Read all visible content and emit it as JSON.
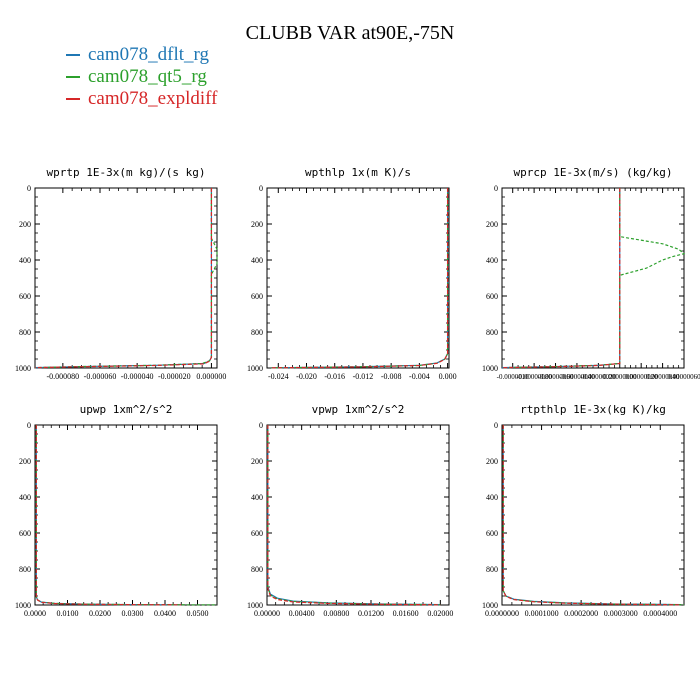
{
  "title": "CLUBB VAR at90E,-75N",
  "colors": {
    "dflt": "#1f77b4",
    "qt5": "#2ca02c",
    "expl": "#d62728"
  },
  "legend": [
    {
      "label": "cam078_dflt_rg",
      "color": "#1f77b4"
    },
    {
      "label": "cam078_qt5_rg",
      "color": "#2ca02c"
    },
    {
      "label": "cam078_expldiff",
      "color": "#d62728"
    }
  ],
  "chart_data": [
    {
      "type": "line",
      "title": "wprtp  1E-3x(m kg)/(s kg)",
      "xlim": [
        -9.5e-05,
        3e-06
      ],
      "ylim": [
        1000,
        0
      ],
      "y_inverted": true,
      "xticks": [
        -8e-05,
        -6e-05,
        -4e-05,
        -2e-05,
        0
      ],
      "xtick_labels": [
        "-0.000080",
        "-0.000060",
        "-0.000040",
        "-0.000020",
        "0.000000"
      ],
      "yticks": [
        0,
        200,
        400,
        600,
        800,
        1000
      ],
      "series": [
        {
          "name": "cam078_dflt_rg",
          "x": [
            0,
            0,
            -1e-06,
            -4e-06,
            -3e-05,
            -7e-05,
            -9.5e-05
          ],
          "y": [
            0,
            940,
            960,
            975,
            985,
            992,
            998
          ]
        },
        {
          "name": "cam078_qt5_rg",
          "x": [
            0,
            0,
            3e-06,
            3e-06,
            0,
            0,
            -1e-06,
            -5e-06,
            -3e-05,
            -7e-05,
            -9.5e-05
          ],
          "y": [
            0,
            280,
            340,
            420,
            480,
            940,
            960,
            975,
            985,
            992,
            998
          ]
        },
        {
          "name": "cam078_expldiff",
          "x": [
            0,
            0,
            -1e-06,
            -4e-06,
            -3e-05,
            -7e-05,
            -9.5e-05
          ],
          "y": [
            0,
            940,
            962,
            977,
            986,
            993,
            998
          ]
        }
      ]
    },
    {
      "type": "line",
      "title": "wpthlp  1x(m K)/s",
      "xlim": [
        -0.0256,
        0.0002
      ],
      "ylim": [
        1000,
        0
      ],
      "y_inverted": true,
      "xticks": [
        -0.024,
        -0.02,
        -0.016,
        -0.012,
        -0.008,
        -0.004,
        0
      ],
      "xtick_labels": [
        "-0.024",
        "-0.020",
        "-0.016",
        "-0.012",
        "-0.008",
        "-0.004",
        "0.000"
      ],
      "yticks": [
        0,
        200,
        400,
        600,
        800,
        1000
      ],
      "series": [
        {
          "name": "cam078_dflt_rg",
          "x": [
            0,
            0,
            -0.0004,
            -0.0015,
            -0.004,
            -0.012,
            -0.025
          ],
          "y": [
            0,
            920,
            950,
            972,
            985,
            993,
            999
          ]
        },
        {
          "name": "cam078_qt5_rg",
          "x": [
            0,
            0,
            -0.0004,
            -0.0015,
            -0.004,
            -0.012,
            -0.025
          ],
          "y": [
            0,
            920,
            951,
            973,
            986,
            993,
            999
          ]
        },
        {
          "name": "cam078_expldiff",
          "x": [
            0,
            0,
            -0.0004,
            -0.0015,
            -0.004,
            -0.012,
            -0.025
          ],
          "y": [
            0,
            920,
            952,
            974,
            986,
            994,
            999
          ]
        }
      ]
    },
    {
      "type": "line",
      "title": "wprcp  1E-3x(m/s) (kg/kg)",
      "xlim": [
        -1.1e-06,
        6e-07
      ],
      "ylim": [
        1000,
        0
      ],
      "y_inverted": true,
      "xticks": [
        -1e-06,
        -8e-07,
        -6e-07,
        -4e-07,
        -2e-07,
        0,
        2e-07,
        4e-07,
        6e-07
      ],
      "xtick_labels": [
        "-0.0000010",
        "-0.00000080",
        "-0.00000060",
        "-0.00000040",
        "-0.00000020",
        "0.00000000",
        "0.00000020",
        "0.00000040",
        "0.00000060"
      ],
      "yticks": [
        0,
        200,
        400,
        600,
        800,
        1000
      ],
      "series": [
        {
          "name": "cam078_dflt_rg",
          "x": [
            0,
            0,
            -2e-07,
            -6e-07,
            -1.1e-06
          ],
          "y": [
            0,
            975,
            985,
            992,
            998
          ]
        },
        {
          "name": "cam078_qt5_rg",
          "x": [
            0,
            0,
            1.5e-07,
            4e-07,
            5.5e-07,
            6e-07,
            5e-07,
            4e-07,
            2.5e-07,
            0,
            0,
            -2e-07,
            -6e-07,
            -1.1e-06
          ],
          "y": [
            0,
            270,
            285,
            310,
            340,
            365,
            380,
            400,
            445,
            485,
            975,
            985,
            992,
            998
          ]
        },
        {
          "name": "cam078_expldiff",
          "x": [
            0,
            0,
            -2e-07,
            -6e-07,
            -1.1e-06
          ],
          "y": [
            0,
            975,
            986,
            993,
            998
          ]
        }
      ]
    },
    {
      "type": "line",
      "title": "upwp  1xm^2/s^2",
      "xlim": [
        0,
        0.056
      ],
      "ylim": [
        1000,
        0
      ],
      "y_inverted": true,
      "xticks": [
        0,
        0.01,
        0.02,
        0.03,
        0.04,
        0.05
      ],
      "xtick_labels": [
        "0.0000",
        "0.0100",
        "0.0200",
        "0.0300",
        "0.0400",
        "0.0500"
      ],
      "yticks": [
        0,
        200,
        400,
        600,
        800,
        1000
      ],
      "series": [
        {
          "name": "cam078_dflt_rg",
          "x": [
            0.0004,
            0.0004,
            0.0008,
            0.002,
            0.006,
            0.015,
            0.03,
            0.045
          ],
          "y": [
            0,
            955,
            972,
            984,
            991,
            995,
            998,
            999
          ]
        },
        {
          "name": "cam078_qt5_rg",
          "x": [
            0.0004,
            0.0004,
            0.0008,
            0.002,
            0.006,
            0.015,
            0.03,
            0.05,
            0.056
          ],
          "y": [
            0,
            955,
            972,
            984,
            991,
            995,
            998,
            999,
            999
          ]
        },
        {
          "name": "cam078_expldiff",
          "x": [
            0.0004,
            0.0004,
            0.0008,
            0.002,
            0.006,
            0.015,
            0.03,
            0.045
          ],
          "y": [
            0,
            955,
            973,
            985,
            992,
            996,
            998,
            999
          ]
        }
      ]
    },
    {
      "type": "line",
      "title": "vpwp  1xm^2/s^2",
      "xlim": [
        0,
        0.021
      ],
      "ylim": [
        1000,
        0
      ],
      "y_inverted": true,
      "xticks": [
        0,
        0.004,
        0.008,
        0.012,
        0.016,
        0.02
      ],
      "xtick_labels": [
        "0.00000",
        "0.00400",
        "0.00800",
        "0.01200",
        "0.01600",
        "0.02000"
      ],
      "yticks": [
        0,
        200,
        400,
        600,
        800,
        1000
      ],
      "series": [
        {
          "name": "cam078_dflt_rg",
          "x": [
            0.0001,
            0.0001,
            0.0004,
            0.0012,
            0.003,
            0.007,
            0.013,
            0.02
          ],
          "y": [
            0,
            900,
            940,
            962,
            978,
            988,
            994,
            998
          ]
        },
        {
          "name": "cam078_qt5_rg",
          "x": [
            0.0001,
            0.0001,
            0.0004,
            0.0012,
            0.003,
            0.007,
            0.013,
            0.02
          ],
          "y": [
            0,
            905,
            945,
            966,
            980,
            989,
            995,
            998
          ]
        },
        {
          "name": "cam078_expldiff",
          "x": [
            0.0001,
            0.0001,
            0.0004,
            0.0012,
            0.003,
            0.007,
            0.013,
            0.02
          ],
          "y": [
            0,
            910,
            950,
            970,
            983,
            991,
            996,
            999
          ]
        }
      ]
    },
    {
      "type": "line",
      "title": "rtpthlp  1E-3x(kg K)/kg",
      "xlim": [
        0,
        0.00046
      ],
      "ylim": [
        1000,
        0
      ],
      "y_inverted": true,
      "xticks": [
        0,
        0.0001,
        0.0002,
        0.0003,
        0.0004
      ],
      "xtick_labels": [
        "0.0000000",
        "0.0001000",
        "0.0002000",
        "0.0003000",
        "0.0004000"
      ],
      "yticks": [
        0,
        200,
        400,
        600,
        800,
        1000
      ],
      "series": [
        {
          "name": "cam078_dflt_rg",
          "x": [
            3e-06,
            3e-06,
            1e-05,
            3e-05,
            8e-05,
            0.00016,
            0.00028,
            0.00045
          ],
          "y": [
            0,
            920,
            950,
            968,
            980,
            988,
            994,
            998
          ]
        },
        {
          "name": "cam078_qt5_rg",
          "x": [
            3e-06,
            3e-06,
            1e-05,
            3e-05,
            8e-05,
            0.00016,
            0.00028,
            0.00046
          ],
          "y": [
            0,
            920,
            951,
            969,
            981,
            989,
            995,
            998
          ]
        },
        {
          "name": "cam078_expldiff",
          "x": [
            3e-06,
            3e-06,
            1e-05,
            3e-05,
            8e-05,
            0.00016,
            0.00028,
            0.00045
          ],
          "y": [
            0,
            920,
            952,
            970,
            982,
            990,
            995,
            999
          ]
        }
      ]
    }
  ]
}
